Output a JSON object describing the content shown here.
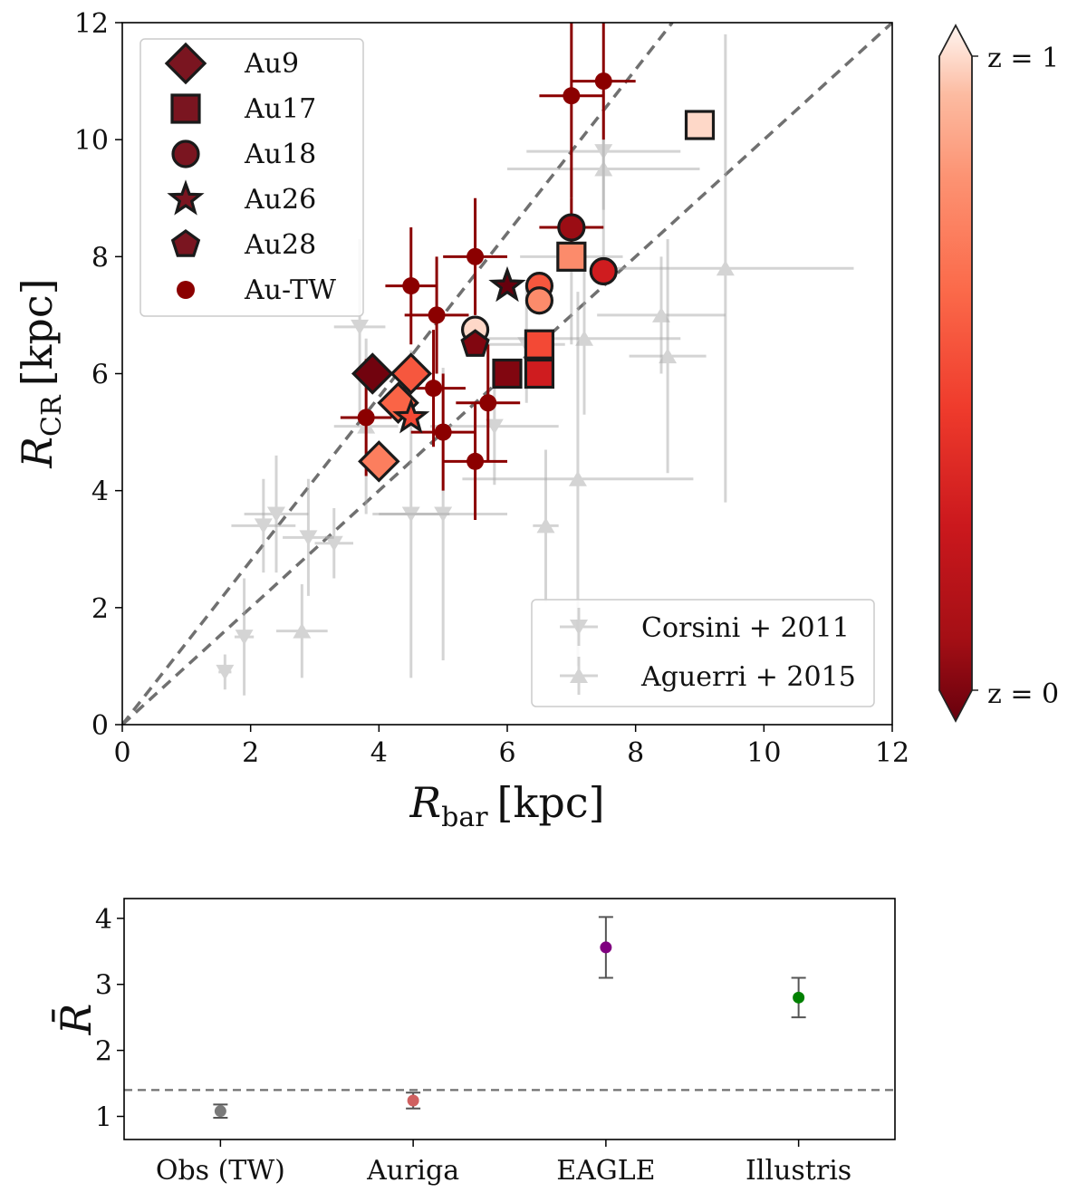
{
  "colors": {
    "z0": "#67000d",
    "z1": "#fff5f0",
    "au_tw": "#8b0000",
    "obs_gray": "#aaaaaa",
    "ref_line": "#707070",
    "marker_edge": "#1a1a1a",
    "obs_tw": "#7a7a7a",
    "auriga": "#d06060",
    "eagle": "#800080",
    "illustris": "#008000"
  },
  "chart_data": [
    {
      "type": "scatter",
      "xlabel_main": "R",
      "xlabel_sub": "bar",
      "xlabel_unit": "[kpc]",
      "ylabel_main": "R",
      "ylabel_sub": "CR",
      "ylabel_unit": "[kpc]",
      "xlim": [
        0,
        12
      ],
      "ylim": [
        0,
        12
      ],
      "xticks": [
        "0",
        "2",
        "4",
        "6",
        "8",
        "10",
        "12"
      ],
      "yticks": [
        "0",
        "2",
        "4",
        "6",
        "8",
        "10",
        "12"
      ],
      "reference_lines": [
        {
          "slope": 1.0
        },
        {
          "slope": 1.4
        }
      ],
      "legend_models": {
        "placement": "top-left",
        "entries": [
          {
            "label": "Au9",
            "marker": "diamond"
          },
          {
            "label": "Au17",
            "marker": "square"
          },
          {
            "label": "Au18",
            "marker": "circle"
          },
          {
            "label": "Au26",
            "marker": "star"
          },
          {
            "label": "Au28",
            "marker": "pentagon"
          },
          {
            "label": "Au-TW",
            "marker": "dot"
          }
        ]
      },
      "legend_obs": {
        "placement": "lower-right",
        "entries": [
          {
            "label": "Corsini + 2011",
            "marker": "triangle-down"
          },
          {
            "label": "Aguerri + 2015",
            "marker": "triangle-up"
          }
        ]
      },
      "colorbar": {
        "label_top": "z = 1",
        "label_bottom": "z = 0"
      },
      "models": [
        {
          "name": "Au9",
          "marker": "diamond",
          "x": 3.9,
          "y": 6.0,
          "z": 0.02
        },
        {
          "name": "Au9",
          "marker": "diamond",
          "x": 4.5,
          "y": 6.0,
          "z": 0.55
        },
        {
          "name": "Au9",
          "marker": "diamond",
          "x": 4.3,
          "y": 5.5,
          "z": 0.6
        },
        {
          "name": "Au9",
          "marker": "diamond",
          "x": 4.0,
          "y": 4.5,
          "z": 0.7
        },
        {
          "name": "Au17",
          "marker": "square",
          "x": 6.0,
          "y": 6.0,
          "z": 0.05
        },
        {
          "name": "Au17",
          "marker": "square",
          "x": 6.5,
          "y": 6.0,
          "z": 0.3
        },
        {
          "name": "Au17",
          "marker": "square",
          "x": 6.5,
          "y": 6.5,
          "z": 0.5
        },
        {
          "name": "Au17",
          "marker": "square",
          "x": 7.0,
          "y": 8.0,
          "z": 0.75
        },
        {
          "name": "Au17",
          "marker": "square",
          "x": 9.0,
          "y": 10.25,
          "z": 0.95
        },
        {
          "name": "Au18",
          "marker": "circle",
          "x": 7.0,
          "y": 8.5,
          "z": 0.1
        },
        {
          "name": "Au18",
          "marker": "circle",
          "x": 7.5,
          "y": 7.75,
          "z": 0.3
        },
        {
          "name": "Au18",
          "marker": "circle",
          "x": 6.5,
          "y": 7.5,
          "z": 0.55
        },
        {
          "name": "Au18",
          "marker": "circle",
          "x": 6.5,
          "y": 7.25,
          "z": 0.75
        },
        {
          "name": "Au18",
          "marker": "circle",
          "x": 5.5,
          "y": 6.75,
          "z": 0.95
        },
        {
          "name": "Au26",
          "marker": "star",
          "x": 6.0,
          "y": 7.5,
          "z": 0.0
        },
        {
          "name": "Au26",
          "marker": "star",
          "x": 4.5,
          "y": 5.25,
          "z": 0.5
        },
        {
          "name": "Au28",
          "marker": "pentagon",
          "x": 5.5,
          "y": 6.5,
          "z": 0.05
        }
      ],
      "au_tw": [
        {
          "x": 7.0,
          "y": 10.75,
          "xerr": 0.5,
          "yerr": 1.75
        },
        {
          "x": 7.5,
          "y": 11.0,
          "xerr": 0.5,
          "yerr": 1.0
        },
        {
          "x": 7.0,
          "y": 8.5,
          "xerr": 0.5,
          "yerr": 0.5
        },
        {
          "x": 4.5,
          "y": 7.5,
          "xerr": 0.4,
          "yerr": 1.0
        },
        {
          "x": 5.5,
          "y": 8.0,
          "xerr": 0.5,
          "yerr": 1.0
        },
        {
          "x": 4.9,
          "y": 7.0,
          "xerr": 0.5,
          "yerr": 1.0
        },
        {
          "x": 3.8,
          "y": 5.25,
          "xerr": 0.4,
          "yerr": 1.0
        },
        {
          "x": 4.85,
          "y": 5.75,
          "xerr": 0.5,
          "yerr": 1.0
        },
        {
          "x": 5.0,
          "y": 5.0,
          "xerr": 0.5,
          "yerr": 1.0
        },
        {
          "x": 5.7,
          "y": 5.5,
          "xerr": 0.5,
          "yerr": 1.0
        },
        {
          "x": 5.5,
          "y": 4.5,
          "xerr": 0.5,
          "yerr": 1.0
        }
      ],
      "corsini_2011": [
        {
          "x": 1.6,
          "y": 0.9,
          "xerr": 0.1,
          "yerr": 0.3
        },
        {
          "x": 1.9,
          "y": 1.5,
          "xerr": 0.15,
          "yerr": 1.0
        },
        {
          "x": 2.2,
          "y": 3.4,
          "xerr": 0.5,
          "yerr": 0.8
        },
        {
          "x": 2.4,
          "y": 3.6,
          "xerr": 0.5,
          "yerr": 1.0
        },
        {
          "x": 2.9,
          "y": 3.2,
          "xerr": 0.4,
          "yerr": 1.0
        },
        {
          "x": 3.3,
          "y": 3.1,
          "xerr": 0.3,
          "yerr": 0.6
        },
        {
          "x": 3.7,
          "y": 6.8,
          "xerr": 0.4,
          "yerr": 1.5
        },
        {
          "x": 4.5,
          "y": 3.6,
          "xerr": 0.6,
          "yerr": 2.8
        },
        {
          "x": 5.0,
          "y": 3.6,
          "xerr": 1.0,
          "yerr": 2.5
        },
        {
          "x": 5.8,
          "y": 5.1,
          "xerr": 1.0,
          "yerr": 1.0
        },
        {
          "x": 6.3,
          "y": 6.5,
          "xerr": 0.6,
          "yerr": 1.0
        },
        {
          "x": 7.0,
          "y": 8.0,
          "xerr": 0.8,
          "yerr": 1.5
        },
        {
          "x": 7.5,
          "y": 9.8,
          "xerr": 1.2,
          "yerr": 1.0
        }
      ],
      "aguerri_2015": [
        {
          "x": 2.8,
          "y": 1.6,
          "xerr": 0.4,
          "yerr": 0.8
        },
        {
          "x": 3.8,
          "y": 5.1,
          "xerr": 0.5,
          "yerr": 1.5
        },
        {
          "x": 6.6,
          "y": 3.4,
          "xerr": 0.2,
          "yerr": 1.3
        },
        {
          "x": 7.1,
          "y": 4.2,
          "xerr": 1.8,
          "yerr": 3.2
        },
        {
          "x": 7.2,
          "y": 6.6,
          "xerr": 1.5,
          "yerr": 1.3
        },
        {
          "x": 7.5,
          "y": 9.5,
          "xerr": 1.5,
          "yerr": 1.5
        },
        {
          "x": 8.4,
          "y": 7.0,
          "xerr": 1.0,
          "yerr": 1.0
        },
        {
          "x": 8.5,
          "y": 6.3,
          "xerr": 0.6,
          "yerr": 2.0
        },
        {
          "x": 9.4,
          "y": 7.8,
          "xerr": 2.0,
          "yerr": 4.0
        }
      ]
    },
    {
      "type": "scatter",
      "ylabel": "R̄",
      "categories": [
        "Obs (TW)",
        "Auriga",
        "EAGLE",
        "Illustris"
      ],
      "values": [
        1.08,
        1.24,
        3.56,
        2.8
      ],
      "errors": [
        0.1,
        0.12,
        0.46,
        0.3
      ],
      "ylim": [
        0.65,
        4.3
      ],
      "yticks": [
        "1",
        "2",
        "3",
        "4"
      ],
      "reference_line_y": 1.4
    }
  ]
}
